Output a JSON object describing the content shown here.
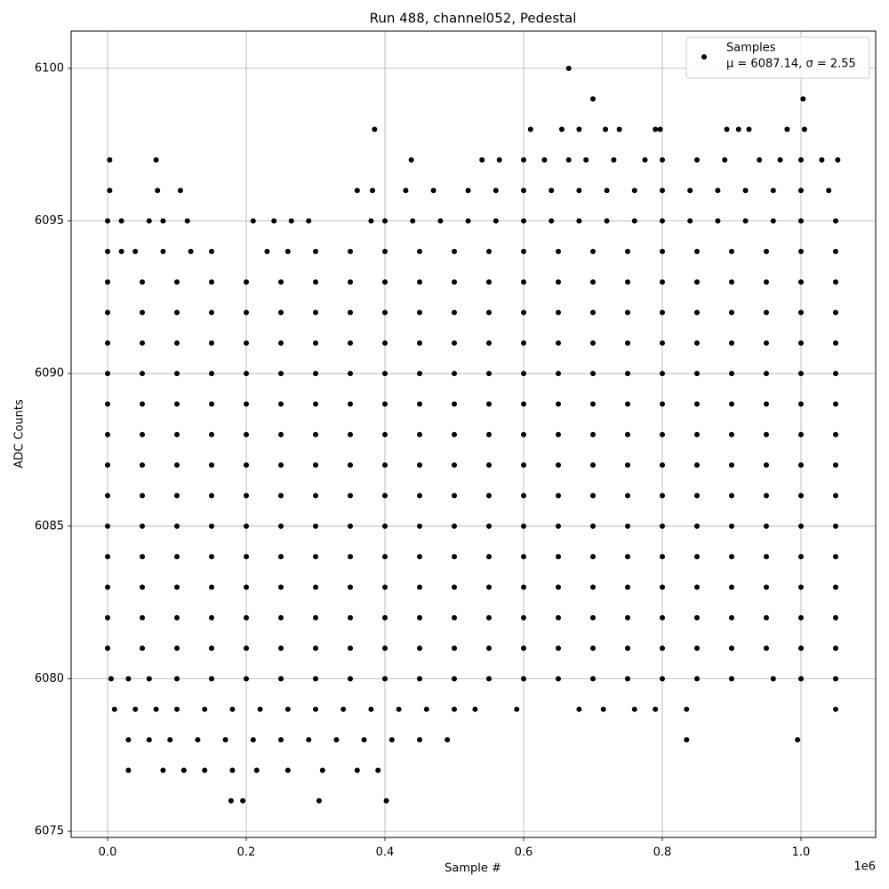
{
  "chart_data": {
    "type": "scatter",
    "title": "Run 488, channel052, Pedestal",
    "x_label": "Sample #",
    "y_label": "ADC Counts",
    "x_offset_label": "1e6",
    "series_name": "Samples",
    "legend_stats": "μ = 6087.14, σ = 2.55",
    "legend": "upper right",
    "color": "#000000",
    "grid": true,
    "xlim": [
      -52600,
      1107700
    ],
    "ylim": [
      6074.8,
      6101.22
    ],
    "xticks": [
      {
        "value": 0,
        "label": "0.0"
      },
      {
        "value": 200000,
        "label": "0.2"
      },
      {
        "value": 400000,
        "label": "0.4"
      },
      {
        "value": 600000,
        "label": "0.6"
      },
      {
        "value": 800000,
        "label": "0.8"
      },
      {
        "value": 1000000,
        "label": "1.0"
      }
    ],
    "yticks": [
      6075,
      6080,
      6085,
      6090,
      6095,
      6100
    ],
    "rows": [
      {
        "y": 6100,
        "x": [
          665000
        ]
      },
      {
        "y": 6099,
        "x": [
          700000,
          1003000
        ]
      },
      {
        "y": 6098,
        "x": [
          385000,
          610000,
          655000,
          680000,
          718000,
          738000,
          790000,
          797000,
          893000,
          910000,
          925000,
          980000,
          1005000
        ]
      },
      {
        "y": 6097,
        "x": [
          3000,
          70000,
          438000,
          540000,
          565000,
          600000,
          630000,
          665000,
          690000,
          730000,
          775000,
          800000,
          850000,
          890000,
          940000,
          970000,
          1000000,
          1030000,
          1053000
        ]
      },
      {
        "y": 6096,
        "x": [
          3000,
          72000,
          105000,
          360000,
          382000,
          430000,
          470000,
          520000,
          560000,
          600000,
          640000,
          680000,
          720000,
          760000,
          800000,
          840000,
          880000,
          920000,
          960000,
          1000000,
          1040000
        ]
      },
      {
        "y": 6095,
        "x": [
          0,
          20000,
          60000,
          80000,
          115000,
          210000,
          240000,
          265000,
          290000,
          380000,
          400000,
          440000,
          480000,
          520000,
          560000,
          600000,
          640000,
          680000,
          720000,
          760000,
          800000,
          840000,
          880000,
          920000,
          960000,
          1000000,
          1050000
        ]
      },
      {
        "y": 6094,
        "x": [
          0,
          20000,
          40000,
          80000,
          120000,
          150000,
          230000,
          260000,
          300000,
          350000,
          400000,
          450000,
          500000,
          550000,
          600000,
          650000,
          700000,
          750000,
          800000,
          850000,
          900000,
          950000,
          1000000,
          1050000
        ]
      },
      {
        "y": 6093,
        "x": [
          0,
          50000,
          100000,
          150000,
          200000,
          250000,
          300000,
          350000,
          400000,
          450000,
          500000,
          550000,
          600000,
          650000,
          700000,
          750000,
          800000,
          850000,
          900000,
          950000,
          1000000,
          1050000
        ]
      },
      {
        "y": 6092,
        "x": [
          0,
          50000,
          100000,
          150000,
          200000,
          250000,
          300000,
          350000,
          400000,
          450000,
          500000,
          550000,
          600000,
          650000,
          700000,
          750000,
          800000,
          850000,
          900000,
          950000,
          1000000,
          1050000
        ]
      },
      {
        "y": 6091,
        "x": [
          0,
          50000,
          100000,
          150000,
          200000,
          250000,
          300000,
          350000,
          400000,
          450000,
          500000,
          550000,
          600000,
          650000,
          700000,
          750000,
          800000,
          850000,
          900000,
          950000,
          1000000,
          1050000
        ]
      },
      {
        "y": 6090,
        "x": [
          0,
          50000,
          100000,
          150000,
          200000,
          250000,
          300000,
          350000,
          400000,
          450000,
          500000,
          550000,
          600000,
          650000,
          700000,
          750000,
          800000,
          850000,
          900000,
          950000,
          1000000,
          1050000
        ]
      },
      {
        "y": 6089,
        "x": [
          0,
          50000,
          100000,
          150000,
          200000,
          250000,
          300000,
          350000,
          400000,
          450000,
          500000,
          550000,
          600000,
          650000,
          700000,
          750000,
          800000,
          850000,
          900000,
          950000,
          1000000,
          1050000
        ]
      },
      {
        "y": 6088,
        "x": [
          0,
          50000,
          100000,
          150000,
          200000,
          250000,
          300000,
          350000,
          400000,
          450000,
          500000,
          550000,
          600000,
          650000,
          700000,
          750000,
          800000,
          850000,
          900000,
          950000,
          1000000,
          1050000
        ]
      },
      {
        "y": 6087,
        "x": [
          0,
          50000,
          100000,
          150000,
          200000,
          250000,
          300000,
          350000,
          400000,
          450000,
          500000,
          550000,
          600000,
          650000,
          700000,
          750000,
          800000,
          850000,
          900000,
          950000,
          1000000,
          1050000
        ]
      },
      {
        "y": 6086,
        "x": [
          0,
          50000,
          100000,
          150000,
          200000,
          250000,
          300000,
          350000,
          400000,
          450000,
          500000,
          550000,
          600000,
          650000,
          700000,
          750000,
          800000,
          850000,
          900000,
          950000,
          1000000,
          1050000
        ]
      },
      {
        "y": 6085,
        "x": [
          0,
          50000,
          100000,
          150000,
          200000,
          250000,
          300000,
          350000,
          400000,
          450000,
          500000,
          550000,
          600000,
          650000,
          700000,
          750000,
          800000,
          850000,
          900000,
          950000,
          1000000,
          1050000
        ]
      },
      {
        "y": 6084,
        "x": [
          0,
          50000,
          100000,
          150000,
          200000,
          250000,
          300000,
          350000,
          400000,
          450000,
          500000,
          550000,
          600000,
          650000,
          700000,
          750000,
          800000,
          850000,
          900000,
          950000,
          1000000,
          1050000
        ]
      },
      {
        "y": 6083,
        "x": [
          0,
          50000,
          100000,
          150000,
          200000,
          250000,
          300000,
          350000,
          400000,
          450000,
          500000,
          550000,
          600000,
          650000,
          700000,
          750000,
          800000,
          850000,
          900000,
          950000,
          1000000,
          1050000
        ]
      },
      {
        "y": 6082,
        "x": [
          0,
          50000,
          100000,
          150000,
          200000,
          250000,
          300000,
          350000,
          400000,
          450000,
          500000,
          550000,
          600000,
          650000,
          700000,
          750000,
          800000,
          850000,
          900000,
          950000,
          1000000,
          1050000
        ]
      },
      {
        "y": 6081,
        "x": [
          0,
          50000,
          100000,
          150000,
          200000,
          250000,
          300000,
          350000,
          400000,
          450000,
          500000,
          550000,
          600000,
          650000,
          700000,
          750000,
          800000,
          850000,
          900000,
          950000,
          1000000,
          1050000
        ]
      },
      {
        "y": 6080,
        "x": [
          5000,
          30000,
          60000,
          100000,
          150000,
          200000,
          250000,
          300000,
          350000,
          400000,
          450000,
          500000,
          550000,
          600000,
          650000,
          700000,
          750000,
          800000,
          850000,
          900000,
          960000,
          1000000,
          1050000
        ]
      },
      {
        "y": 6079,
        "x": [
          10000,
          40000,
          70000,
          100000,
          140000,
          180000,
          220000,
          260000,
          300000,
          340000,
          380000,
          420000,
          460000,
          500000,
          530000,
          590000,
          680000,
          715000,
          760000,
          790000,
          835000,
          1050000
        ]
      },
      {
        "y": 6078,
        "x": [
          30000,
          60000,
          90000,
          130000,
          170000,
          210000,
          250000,
          290000,
          330000,
          370000,
          410000,
          450000,
          490000,
          835000,
          995000
        ]
      },
      {
        "y": 6077,
        "x": [
          30000,
          80000,
          110000,
          140000,
          180000,
          215000,
          260000,
          310000,
          360000,
          390000
        ]
      },
      {
        "y": 6076,
        "x": [
          178000,
          195000,
          305000,
          402000
        ]
      }
    ]
  }
}
